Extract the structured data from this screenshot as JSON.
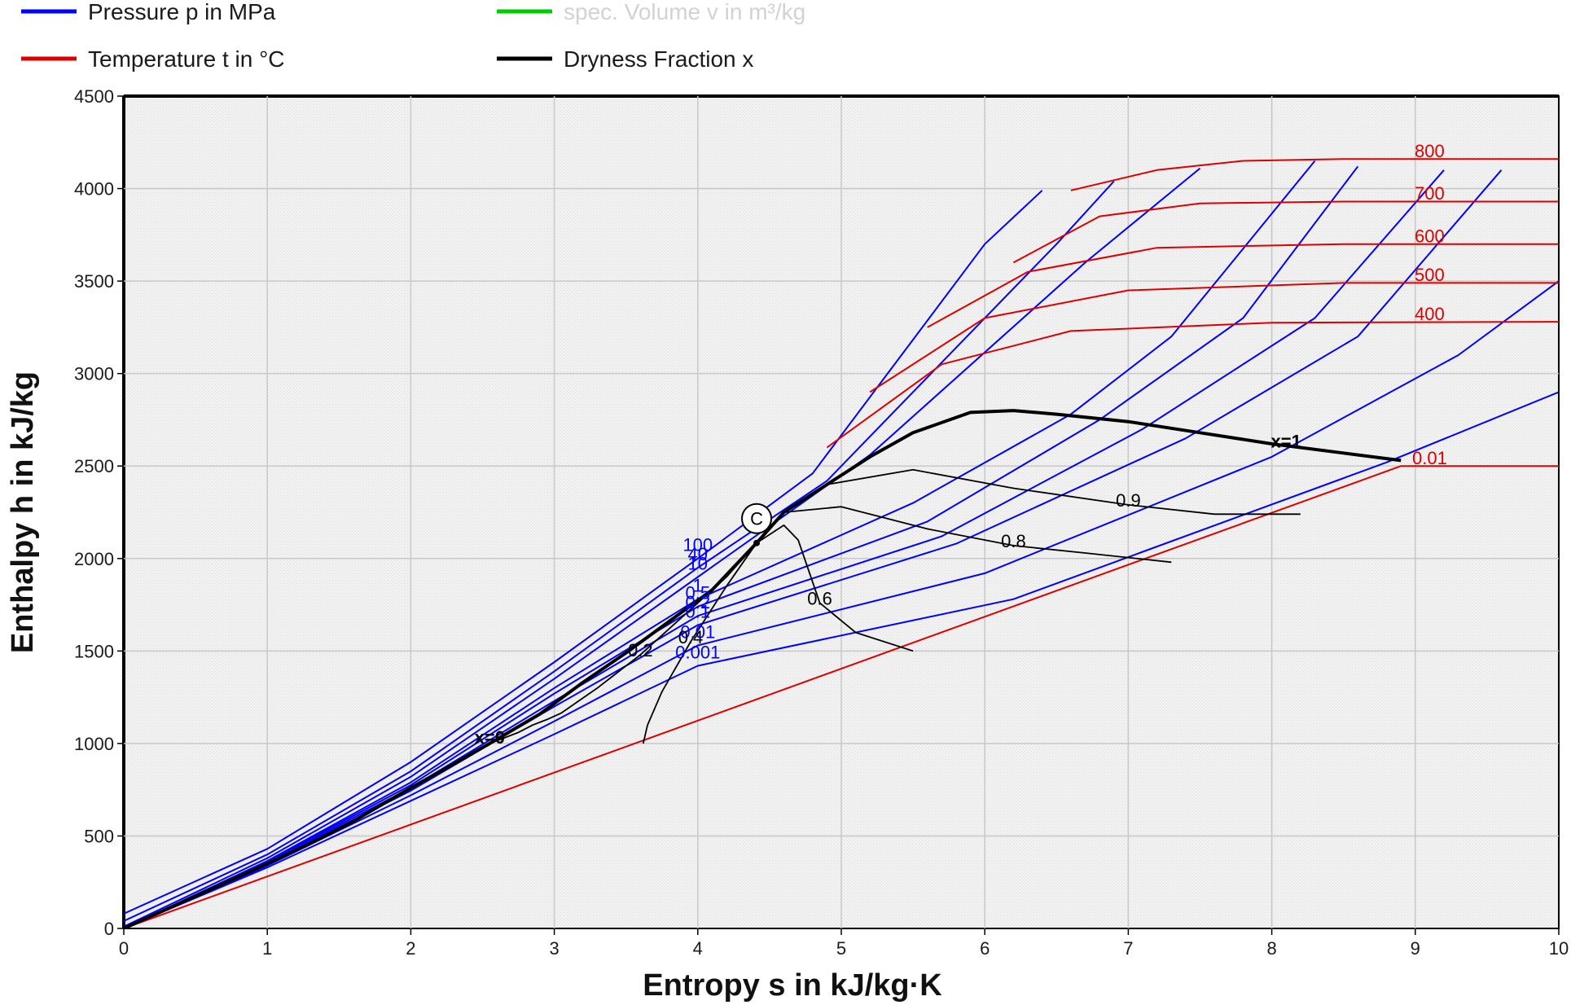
{
  "chart_data": {
    "type": "line",
    "title": "",
    "xlabel": "Entropy s in kJ/kg·K",
    "ylabel": "Enthalpy h in kJ/kg",
    "xlim": [
      0,
      10
    ],
    "ylim": [
      0,
      4500
    ],
    "x_ticks": [
      "0",
      "1",
      "2",
      "3",
      "4",
      "5",
      "6",
      "7",
      "8",
      "9",
      "10"
    ],
    "y_ticks": [
      "0",
      "500",
      "1000",
      "1500",
      "2000",
      "2500",
      "3000",
      "3500",
      "4000",
      "4500"
    ],
    "grid": true,
    "legend": {
      "position": "top",
      "items": [
        {
          "label": "Pressure p in MPa",
          "color": "#0000ff",
          "visible": true
        },
        {
          "label": "spec. Volume v in m³/kg",
          "color": "#00cc00",
          "visible": false
        },
        {
          "label": "Temperature t in °C",
          "color": "#dd0000",
          "visible": true
        },
        {
          "label": "Dryness Fraction x",
          "color": "#000000",
          "visible": true
        }
      ]
    },
    "colors": {
      "pressure": "#0000ff",
      "temperature": "#dd0000",
      "dryness": "#000000",
      "plot_background": "#f0f0f0",
      "grid": "#c8c8c8"
    },
    "critical_point": {
      "label": "C",
      "s": 4.41,
      "h": 2084
    },
    "saturation_curves": [
      {
        "name": "x=0",
        "label": "x=0",
        "points": [
          [
            0,
            0
          ],
          [
            0.3,
            105
          ],
          [
            0.6,
            210
          ],
          [
            1.0,
            350
          ],
          [
            1.3,
            460
          ],
          [
            1.6,
            580
          ],
          [
            2.0,
            760
          ],
          [
            2.3,
            890
          ],
          [
            2.55,
            1000
          ],
          [
            2.9,
            1160
          ],
          [
            3.2,
            1330
          ],
          [
            3.5,
            1490
          ],
          [
            3.8,
            1660
          ],
          [
            4.1,
            1830
          ],
          [
            4.41,
            2084
          ]
        ]
      },
      {
        "name": "x=1",
        "label": "x=1",
        "points": [
          [
            4.41,
            2084
          ],
          [
            4.6,
            2250
          ],
          [
            4.9,
            2400
          ],
          [
            5.2,
            2550
          ],
          [
            5.5,
            2680
          ],
          [
            5.9,
            2790
          ],
          [
            6.2,
            2800
          ],
          [
            6.5,
            2780
          ],
          [
            7.0,
            2740
          ],
          [
            7.5,
            2680
          ],
          [
            8.0,
            2620
          ],
          [
            8.5,
            2570
          ],
          [
            8.9,
            2530
          ]
        ]
      }
    ],
    "dryness_series": [
      {
        "name": "x=0.2",
        "label": "0.2",
        "points": [
          [
            2.55,
            1000
          ],
          [
            2.75,
            1060
          ],
          [
            2.85,
            1100
          ],
          [
            2.95,
            1130
          ],
          [
            3.05,
            1165
          ],
          [
            3.3,
            1300
          ],
          [
            3.6,
            1480
          ],
          [
            3.9,
            1690
          ],
          [
            4.2,
            1900
          ],
          [
            4.41,
            2084
          ]
        ]
      },
      {
        "name": "x=0.4",
        "label": "0.4",
        "points": [
          [
            3.62,
            1000
          ],
          [
            3.65,
            1100
          ],
          [
            3.75,
            1280
          ],
          [
            3.95,
            1550
          ],
          [
            4.2,
            1850
          ],
          [
            4.41,
            2084
          ]
        ]
      },
      {
        "name": "x=0.6",
        "label": "0.6",
        "points": [
          [
            4.41,
            2084
          ],
          [
            4.6,
            2180
          ],
          [
            4.7,
            2100
          ],
          [
            4.85,
            1760
          ],
          [
            5.1,
            1600
          ],
          [
            5.5,
            1500
          ]
        ]
      },
      {
        "name": "x=0.8",
        "label": "0.8",
        "points": [
          [
            4.6,
            2250
          ],
          [
            5.0,
            2280
          ],
          [
            5.6,
            2160
          ],
          [
            6.2,
            2070
          ],
          [
            6.7,
            2030
          ],
          [
            7.3,
            1980
          ]
        ]
      },
      {
        "name": "x=0.9",
        "label": "0.9",
        "points": [
          [
            4.9,
            2400
          ],
          [
            5.5,
            2480
          ],
          [
            6.2,
            2380
          ],
          [
            7.0,
            2290
          ],
          [
            7.6,
            2240
          ],
          [
            8.2,
            2240
          ]
        ]
      }
    ],
    "pressure_series": [
      {
        "name": "p=100",
        "label": "100",
        "points": [
          [
            0,
            80
          ],
          [
            1.0,
            430
          ],
          [
            2.0,
            900
          ],
          [
            3.0,
            1440
          ],
          [
            4.0,
            2000
          ],
          [
            4.8,
            2460
          ],
          [
            6.0,
            3700
          ],
          [
            6.4,
            3990
          ]
        ]
      },
      {
        "name": "p=40",
        "label": "40",
        "points": [
          [
            0,
            40
          ],
          [
            1.0,
            400
          ],
          [
            2.0,
            850
          ],
          [
            3.0,
            1390
          ],
          [
            4.0,
            1950
          ],
          [
            4.9,
            2420
          ],
          [
            6.5,
            3700
          ],
          [
            6.9,
            4040
          ]
        ]
      },
      {
        "name": "p=10",
        "label": "10",
        "points": [
          [
            0,
            10
          ],
          [
            1.0,
            380
          ],
          [
            2.0,
            820
          ],
          [
            3.0,
            1350
          ],
          [
            4.0,
            1900
          ],
          [
            5.2,
            2560
          ],
          [
            6.7,
            3600
          ],
          [
            7.5,
            4110
          ]
        ]
      },
      {
        "name": "p=1",
        "label": "1",
        "points": [
          [
            0,
            1
          ],
          [
            1.0,
            365
          ],
          [
            2.0,
            790
          ],
          [
            3.0,
            1300
          ],
          [
            4.0,
            1780
          ],
          [
            5.5,
            2300
          ],
          [
            6.6,
            2780
          ],
          [
            7.3,
            3200
          ],
          [
            8.3,
            4150
          ]
        ]
      },
      {
        "name": "p=0.5",
        "label": "0.5",
        "points": [
          [
            0,
            0
          ],
          [
            1.0,
            360
          ],
          [
            2.0,
            775
          ],
          [
            3.0,
            1270
          ],
          [
            4.0,
            1740
          ],
          [
            5.6,
            2200
          ],
          [
            6.8,
            2750
          ],
          [
            7.8,
            3300
          ],
          [
            8.6,
            4120
          ]
        ]
      },
      {
        "name": "p=0.2",
        "label": "0.2",
        "points": [
          [
            0,
            0
          ],
          [
            1.0,
            355
          ],
          [
            2.0,
            760
          ],
          [
            3.0,
            1230
          ],
          [
            4.0,
            1690
          ],
          [
            5.7,
            2120
          ],
          [
            7.1,
            2700
          ],
          [
            8.3,
            3300
          ],
          [
            9.2,
            4100
          ]
        ]
      },
      {
        "name": "p=0.1",
        "label": "0.1",
        "points": [
          [
            0,
            0
          ],
          [
            1.0,
            350
          ],
          [
            2.0,
            745
          ],
          [
            3.0,
            1200
          ],
          [
            4.0,
            1640
          ],
          [
            5.8,
            2080
          ],
          [
            7.4,
            2650
          ],
          [
            8.6,
            3200
          ],
          [
            9.6,
            4100
          ]
        ]
      },
      {
        "name": "p=0.01",
        "label": "0.01",
        "points": [
          [
            0,
            0
          ],
          [
            1.0,
            340
          ],
          [
            2.0,
            720
          ],
          [
            3.0,
            1120
          ],
          [
            4.0,
            1530
          ],
          [
            6.0,
            1920
          ],
          [
            8.0,
            2550
          ],
          [
            9.3,
            3100
          ],
          [
            10.0,
            3500
          ]
        ]
      },
      {
        "name": "p=0.001",
        "label": "0.001",
        "points": [
          [
            0,
            0
          ],
          [
            1.0,
            330
          ],
          [
            2.0,
            690
          ],
          [
            3.0,
            1050
          ],
          [
            4.0,
            1420
          ],
          [
            6.2,
            1780
          ],
          [
            8.8,
            2520
          ],
          [
            10.0,
            2900
          ]
        ]
      }
    ],
    "temperature_series": [
      {
        "name": "t=800",
        "label": "800",
        "points": [
          [
            6.6,
            3990
          ],
          [
            7.2,
            4100
          ],
          [
            7.8,
            4150
          ],
          [
            8.5,
            4160
          ],
          [
            10.0,
            4160
          ]
        ]
      },
      {
        "name": "t=700",
        "label": "700",
        "points": [
          [
            6.2,
            3600
          ],
          [
            6.8,
            3850
          ],
          [
            7.5,
            3920
          ],
          [
            8.5,
            3930
          ],
          [
            10.0,
            3930
          ]
        ]
      },
      {
        "name": "t=600",
        "label": "600",
        "points": [
          [
            5.6,
            3250
          ],
          [
            6.3,
            3550
          ],
          [
            7.2,
            3680
          ],
          [
            8.5,
            3700
          ],
          [
            10.0,
            3700
          ]
        ]
      },
      {
        "name": "t=500",
        "label": "500",
        "points": [
          [
            5.2,
            2900
          ],
          [
            6.0,
            3300
          ],
          [
            7.0,
            3450
          ],
          [
            8.5,
            3490
          ],
          [
            10.0,
            3490
          ]
        ]
      },
      {
        "name": "t=400",
        "label": "400",
        "points": [
          [
            4.9,
            2600
          ],
          [
            5.7,
            3050
          ],
          [
            6.6,
            3230
          ],
          [
            8.0,
            3275
          ],
          [
            10.0,
            3280
          ]
        ]
      },
      {
        "name": "t=0.01",
        "label": "0.01",
        "points": [
          [
            0,
            0
          ],
          [
            8.9,
            2500
          ],
          [
            10.0,
            2500
          ]
        ]
      }
    ]
  }
}
